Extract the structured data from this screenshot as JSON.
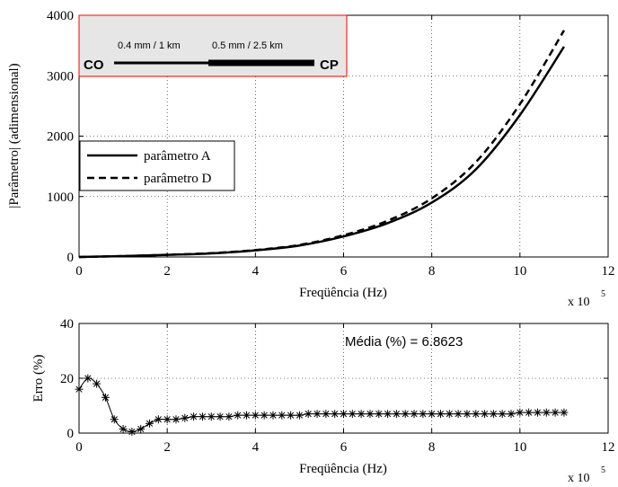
{
  "chart_data": [
    {
      "type": "line",
      "xlabel": "Freqüência (Hz)",
      "ylabel": "|Parâmetro| (adimensional)",
      "x_exponent_label": "x 10",
      "x_exponent_power": "5",
      "xlim": [
        0,
        12
      ],
      "ylim": [
        0,
        4000
      ],
      "x_ticks": [
        "0",
        "2",
        "4",
        "6",
        "8",
        "10",
        "12"
      ],
      "y_ticks": [
        "0",
        "1000",
        "2000",
        "3000",
        "4000"
      ],
      "grid": true,
      "legend_position": "upper-left",
      "series": [
        {
          "name": "parâmetro A",
          "style": "solid",
          "x": [
            0,
            1,
            2,
            3,
            4,
            5,
            6,
            7,
            8,
            9,
            10,
            11
          ],
          "y": [
            0,
            15,
            35,
            60,
            110,
            190,
            340,
            560,
            900,
            1450,
            2350,
            3480
          ]
        },
        {
          "name": "parâmetro D",
          "style": "dashed",
          "x": [
            0,
            1,
            2,
            3,
            4,
            5,
            6,
            7,
            8,
            9,
            10,
            11
          ],
          "y": [
            0,
            15,
            36,
            63,
            115,
            200,
            360,
            600,
            970,
            1570,
            2530,
            3750
          ]
        }
      ],
      "inset": {
        "left_label": "CO",
        "right_label": "CP",
        "segment1_label": "0.4 mm / 1 km",
        "segment2_label": "0.5 mm / 2.5 km"
      }
    },
    {
      "type": "line",
      "xlabel": "Freqüência (Hz)",
      "ylabel": "Erro (%)",
      "x_exponent_label": "x 10",
      "x_exponent_power": "5",
      "xlim": [
        0,
        12
      ],
      "ylim": [
        0,
        40
      ],
      "x_ticks": [
        "0",
        "2",
        "4",
        "6",
        "8",
        "10",
        "12"
      ],
      "y_ticks": [
        "0",
        "20",
        "40"
      ],
      "grid": true,
      "annotation": "Média (%) = 6.8623",
      "series": [
        {
          "style": "solid-asterisk",
          "x": [
            0,
            0.2,
            0.4,
            0.6,
            0.8,
            1.0,
            1.2,
            1.4,
            1.6,
            1.8,
            2.0,
            2.2,
            2.4,
            2.6,
            2.8,
            3.0,
            3.2,
            3.4,
            3.6,
            3.8,
            4.0,
            4.2,
            4.4,
            4.6,
            4.8,
            5.0,
            5.2,
            5.4,
            5.6,
            5.8,
            6.0,
            6.2,
            6.4,
            6.6,
            6.8,
            7.0,
            7.2,
            7.4,
            7.6,
            7.8,
            8.0,
            8.2,
            8.4,
            8.6,
            8.8,
            9.0,
            9.2,
            9.4,
            9.6,
            9.8,
            10.0,
            10.2,
            10.4,
            10.6,
            10.8,
            11.0
          ],
          "y": [
            16,
            20,
            18,
            13,
            5,
            1.5,
            0.5,
            1.5,
            3.5,
            5,
            5,
            5,
            5.5,
            6,
            6,
            6,
            6,
            6,
            6.5,
            6.5,
            6.5,
            6.5,
            6.5,
            6.5,
            6.5,
            6.5,
            7,
            7,
            7,
            7,
            7,
            7,
            7,
            7,
            7,
            7,
            7,
            7,
            7,
            7,
            7,
            7,
            7,
            7,
            7,
            7,
            7,
            7,
            7,
            7,
            7.5,
            7.5,
            7.5,
            7.5,
            7.5,
            7.5
          ]
        }
      ]
    }
  ]
}
